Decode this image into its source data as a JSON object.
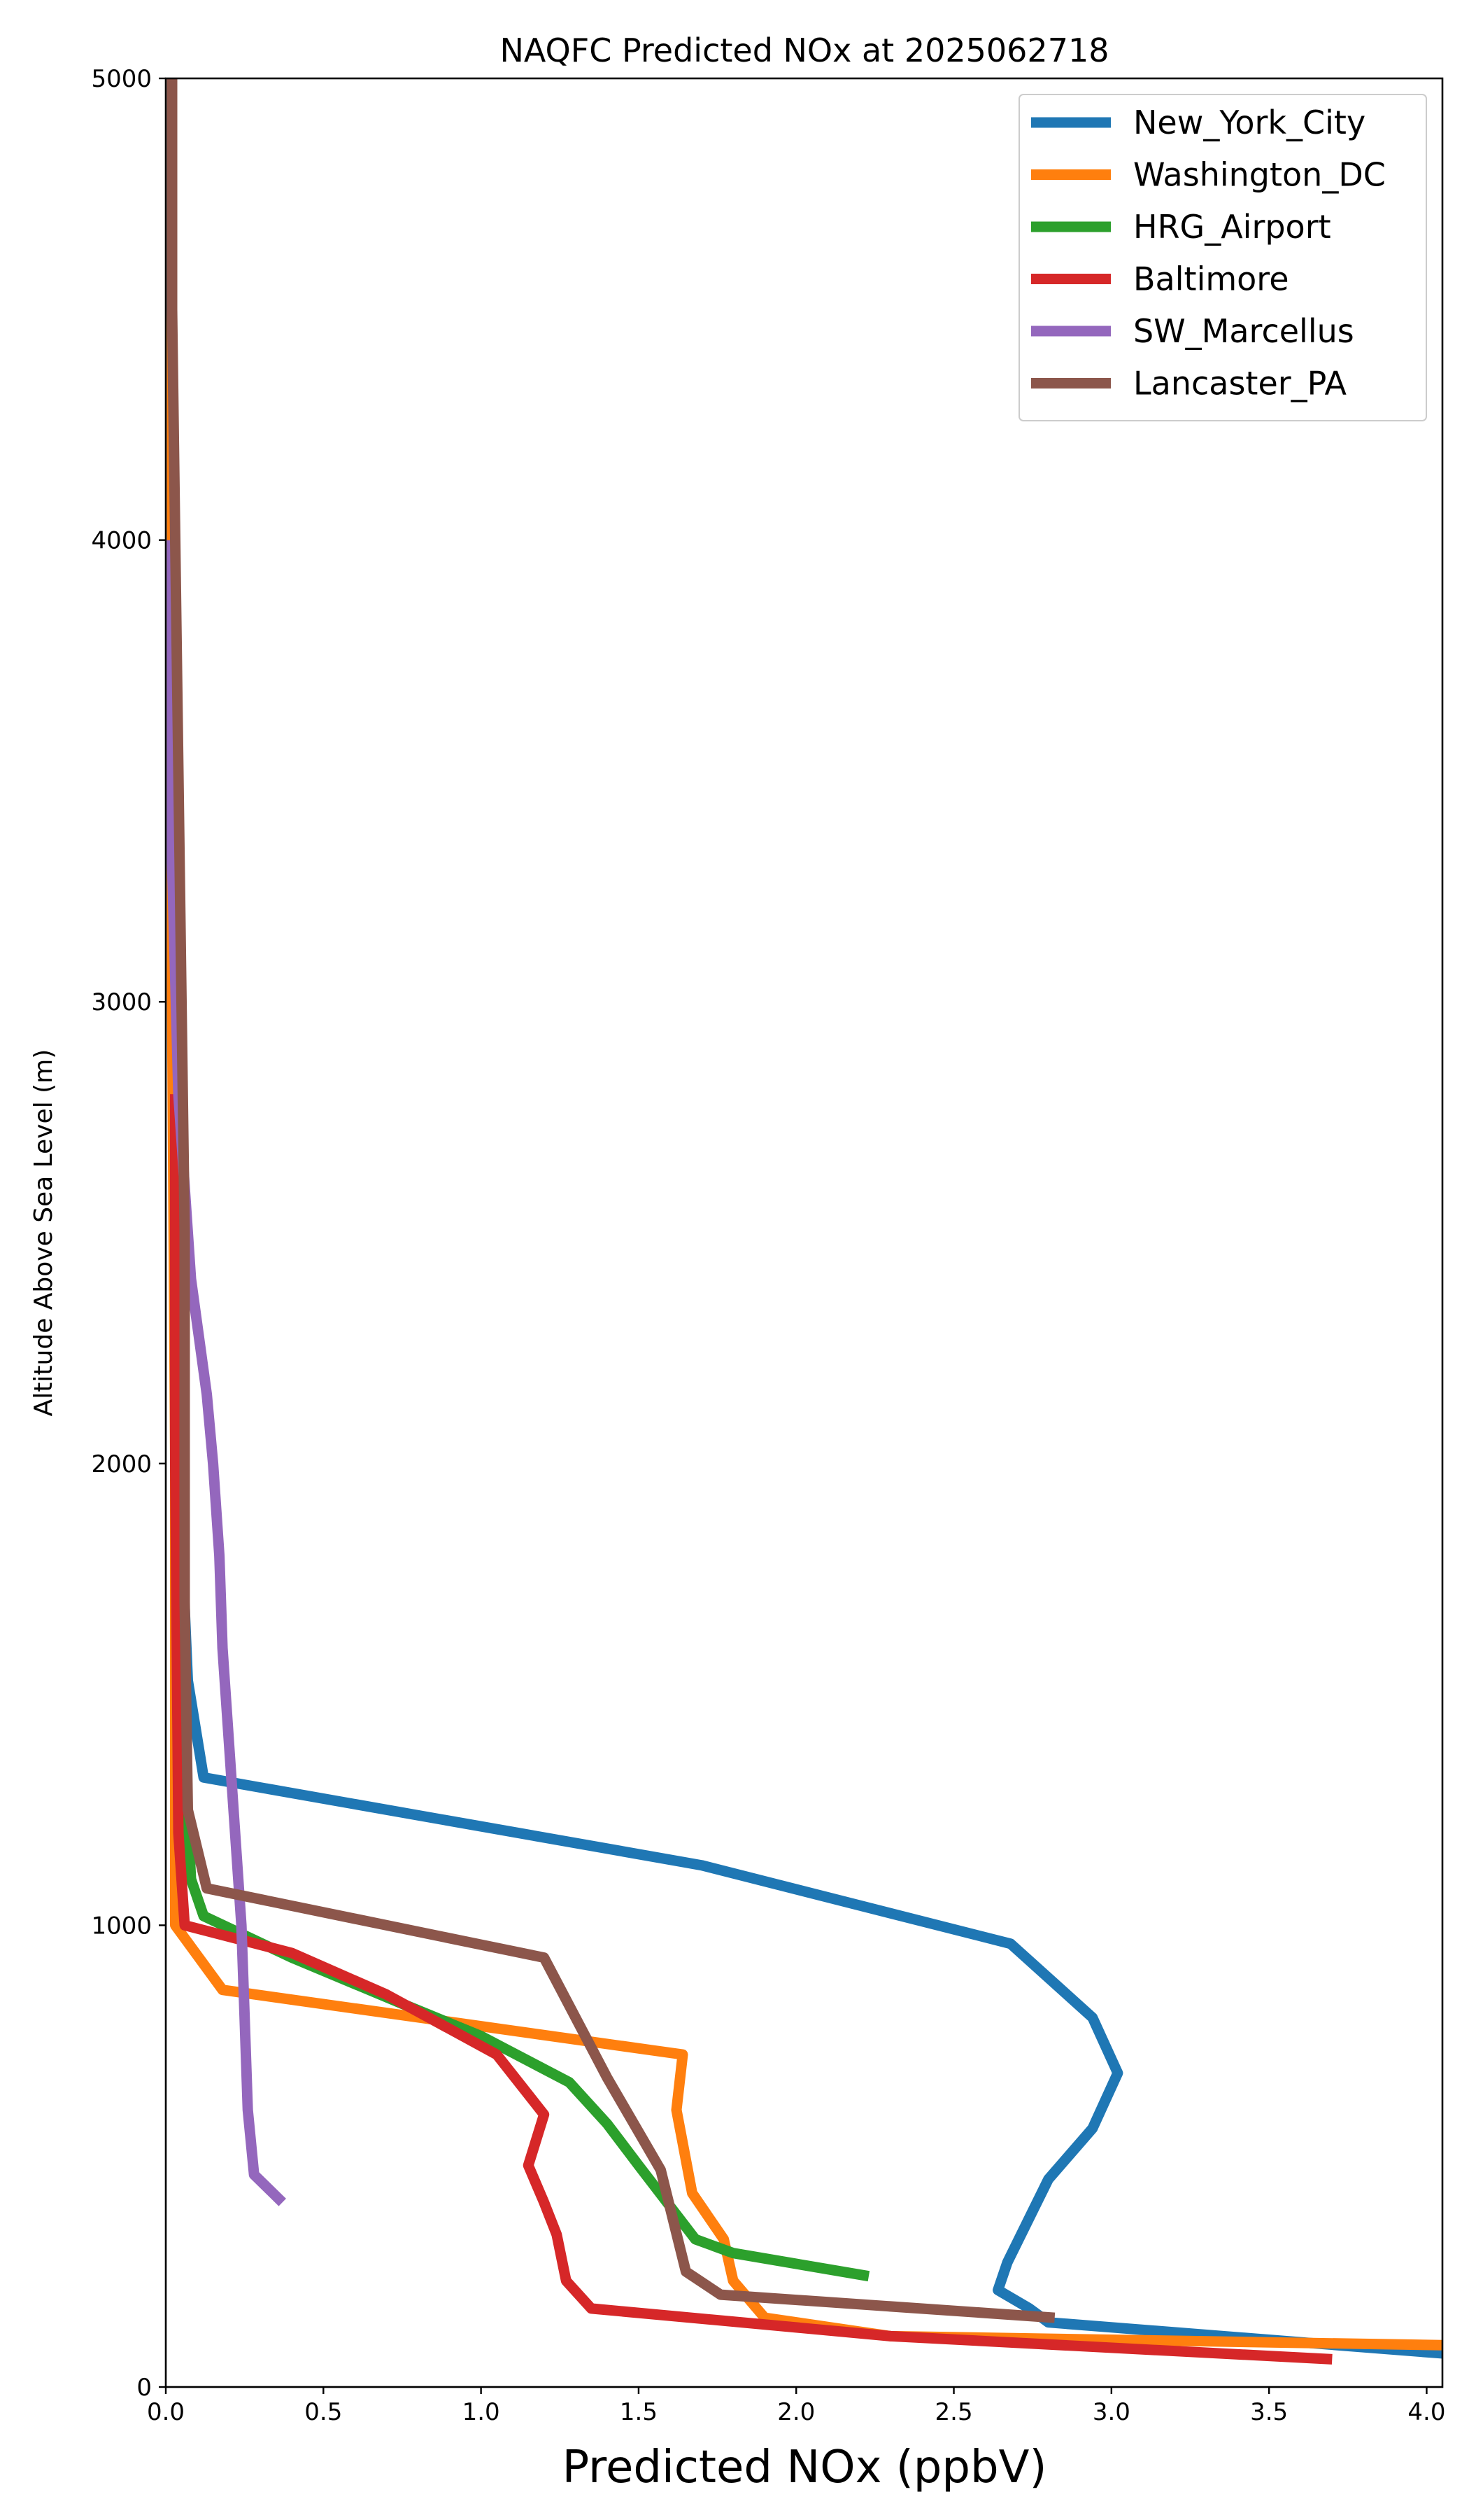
{
  "chart_data": {
    "type": "line",
    "title": "NAQFC Predicted NOx at 2025062718",
    "xlabel": "Predicted NOx (ppbV)",
    "ylabel": "Altitude Above Sea Level (m)",
    "xlim": [
      0,
      4.05
    ],
    "ylim": [
      0,
      5000
    ],
    "xticks": [
      0,
      0.5,
      1.0,
      1.5,
      2.0,
      2.5,
      3.0,
      3.5,
      4.0
    ],
    "xtick_labels": [
      "0.0",
      "0.5",
      "1.0",
      "1.5",
      "2.0",
      "2.5",
      "3.0",
      "3.5",
      "4.0"
    ],
    "yticks": [
      0,
      1000,
      2000,
      3000,
      4000,
      5000
    ],
    "ytick_labels": [
      "0",
      "1000",
      "2000",
      "3000",
      "4000",
      "5000"
    ],
    "grid": false,
    "legend_position": "top-right",
    "series": [
      {
        "name": "New_York_City",
        "color": "#1f77b4",
        "x": [
          4.1,
          2.8,
          2.74,
          2.64,
          2.67,
          2.8,
          2.94,
          3.02,
          2.94,
          2.68,
          1.7,
          0.12,
          0.07,
          0.04,
          0.03,
          0.02,
          0.02,
          0.02
        ],
        "y": [
          70,
          140,
          170,
          210,
          270,
          450,
          560,
          680,
          800,
          960,
          1130,
          1320,
          1530,
          2000,
          3000,
          4000,
          4500,
          5000
        ]
      },
      {
        "name": "Washington_DC",
        "color": "#ff7f0e",
        "x": [
          4.1,
          2.3,
          1.9,
          1.8,
          1.77,
          1.67,
          1.62,
          1.64,
          0.18,
          0.03,
          0.03,
          0.03,
          0.02,
          0.02,
          0.02
        ],
        "y": [
          90,
          110,
          150,
          230,
          320,
          420,
          600,
          720,
          860,
          1000,
          1500,
          2000,
          3000,
          4000,
          5000
        ]
      },
      {
        "name": "HRG_Airport",
        "color": "#2ca02c",
        "x": [
          2.23,
          1.8,
          1.68,
          1.5,
          1.4,
          1.28,
          1.0,
          0.75,
          0.4,
          0.12,
          0.08,
          0.05,
          0.04,
          0.03
        ],
        "y": [
          240,
          290,
          320,
          480,
          570,
          660,
          760,
          830,
          930,
          1020,
          1100,
          1500,
          2000,
          2400
        ]
      },
      {
        "name": "Baltimore",
        "color": "#d62728",
        "x": [
          3.7,
          2.3,
          1.35,
          1.27,
          1.24,
          1.2,
          1.15,
          1.2,
          1.05,
          0.7,
          0.4,
          0.06,
          0.04,
          0.03,
          0.03
        ],
        "y": [
          60,
          110,
          170,
          230,
          330,
          400,
          480,
          590,
          720,
          850,
          940,
          1000,
          1200,
          2000,
          2800
        ]
      },
      {
        "name": "SW_Marcellus",
        "color": "#9467bd",
        "x": [
          0.37,
          0.28,
          0.26,
          0.25,
          0.24,
          0.22,
          0.2,
          0.18,
          0.17,
          0.15,
          0.13,
          0.08,
          0.04,
          0.02,
          0.02
        ],
        "y": [
          400,
          460,
          600,
          800,
          1000,
          1200,
          1400,
          1600,
          1800,
          2000,
          2150,
          2400,
          2800,
          3300,
          4000
        ]
      },
      {
        "name": "Lancaster_PA",
        "color": "#8c564b",
        "x": [
          2.82,
          1.76,
          1.65,
          1.57,
          1.4,
          1.2,
          0.13,
          0.07,
          0.06,
          0.06,
          0.06,
          0.05,
          0.04,
          0.03,
          0.02,
          0.02
        ],
        "y": [
          150,
          200,
          250,
          470,
          670,
          930,
          1080,
          1250,
          1700,
          2000,
          2500,
          3000,
          3500,
          4000,
          4500,
          5000
        ]
      }
    ]
  }
}
